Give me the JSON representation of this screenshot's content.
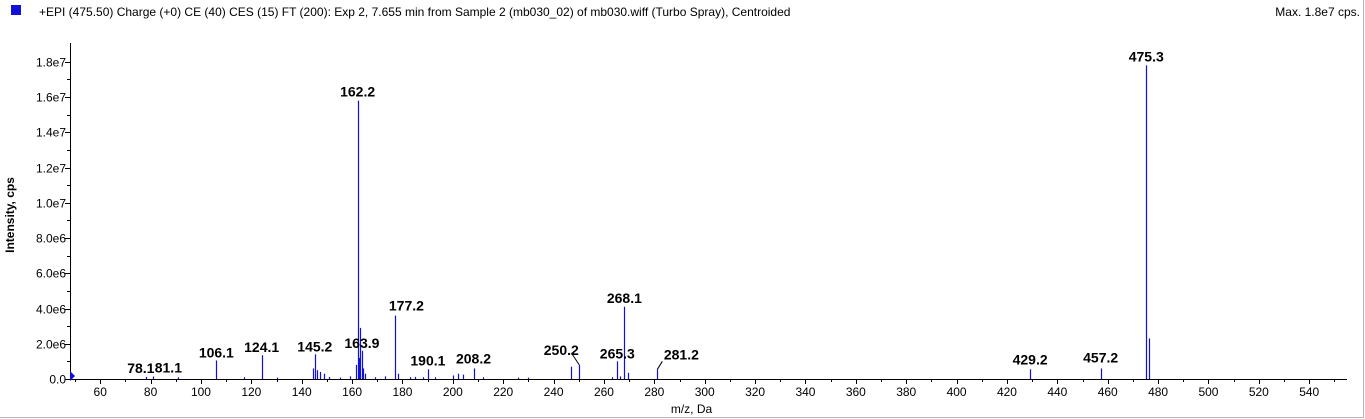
{
  "header": {
    "title": "+EPI (475.50) Charge (+0) CE (40) CES (15) FT (200): Exp 2, 7.655 min from Sample 2 (mb030_02) of mb030.wiff (Turbo Spray), Centroided",
    "max_label": "Max. 1.8e7 cps.",
    "series_color": "#1010d8"
  },
  "chart_data": {
    "type": "bar",
    "title": "",
    "xlabel": "m/z, Da",
    "ylabel": "Intensity, cps",
    "xlim": [
      48,
      555
    ],
    "ylim": [
      0,
      18500000
    ],
    "x_ticks": [
      60,
      80,
      100,
      120,
      140,
      160,
      180,
      200,
      220,
      240,
      260,
      280,
      300,
      320,
      340,
      360,
      380,
      400,
      420,
      440,
      460,
      480,
      500,
      520,
      540
    ],
    "x_tick_labels": [
      "60",
      "80",
      "100",
      "120",
      "140",
      "160",
      "180",
      "200",
      "220",
      "240",
      "260",
      "280",
      "300",
      "320",
      "340",
      "360",
      "380",
      "400",
      "420",
      "440",
      "460",
      "480",
      "500",
      "520",
      "540"
    ],
    "y_ticks": [
      0,
      2000000,
      4000000,
      6000000,
      8000000,
      10000000,
      12000000,
      14000000,
      16000000,
      18000000
    ],
    "y_tick_labels": [
      "0.0",
      "2.0e6",
      "4.0e6",
      "6.0e6",
      "8.0e6",
      "1.0e7",
      "1.2e7",
      "1.4e7",
      "1.6e7",
      "1.8e7"
    ],
    "grid": false,
    "color": "#1010d8",
    "peaks": [
      {
        "mz": 48.5,
        "intensity": 300000
      },
      {
        "mz": 78.1,
        "intensity": 120000
      },
      {
        "mz": 81.1,
        "intensity": 140000
      },
      {
        "mz": 91.0,
        "intensity": 100000
      },
      {
        "mz": 106.1,
        "intensity": 1050000
      },
      {
        "mz": 117.0,
        "intensity": 100000
      },
      {
        "mz": 124.1,
        "intensity": 1350000
      },
      {
        "mz": 130.0,
        "intensity": 80000
      },
      {
        "mz": 144.5,
        "intensity": 600000
      },
      {
        "mz": 145.2,
        "intensity": 1400000
      },
      {
        "mz": 146.2,
        "intensity": 500000
      },
      {
        "mz": 147.1,
        "intensity": 400000
      },
      {
        "mz": 149.0,
        "intensity": 300000
      },
      {
        "mz": 151.0,
        "intensity": 120000
      },
      {
        "mz": 155.0,
        "intensity": 80000
      },
      {
        "mz": 159.0,
        "intensity": 150000
      },
      {
        "mz": 161.5,
        "intensity": 800000
      },
      {
        "mz": 162.2,
        "intensity": 15800000
      },
      {
        "mz": 162.8,
        "intensity": 1200000
      },
      {
        "mz": 163.2,
        "intensity": 2900000
      },
      {
        "mz": 163.9,
        "intensity": 1600000
      },
      {
        "mz": 164.4,
        "intensity": 600000
      },
      {
        "mz": 165.0,
        "intensity": 300000
      },
      {
        "mz": 169.0,
        "intensity": 100000
      },
      {
        "mz": 173.0,
        "intensity": 150000
      },
      {
        "mz": 177.2,
        "intensity": 3600000
      },
      {
        "mz": 178.2,
        "intensity": 300000
      },
      {
        "mz": 183.0,
        "intensity": 100000
      },
      {
        "mz": 185.0,
        "intensity": 120000
      },
      {
        "mz": 188.0,
        "intensity": 100000
      },
      {
        "mz": 190.1,
        "intensity": 550000
      },
      {
        "mz": 193.0,
        "intensity": 100000
      },
      {
        "mz": 200.0,
        "intensity": 200000
      },
      {
        "mz": 202.0,
        "intensity": 300000
      },
      {
        "mz": 204.0,
        "intensity": 250000
      },
      {
        "mz": 208.2,
        "intensity": 600000
      },
      {
        "mz": 212.0,
        "intensity": 100000
      },
      {
        "mz": 226.0,
        "intensity": 80000
      },
      {
        "mz": 230.0,
        "intensity": 80000
      },
      {
        "mz": 247.0,
        "intensity": 700000
      },
      {
        "mz": 250.2,
        "intensity": 800000
      },
      {
        "mz": 263.0,
        "intensity": 100000
      },
      {
        "mz": 265.3,
        "intensity": 1000000
      },
      {
        "mz": 266.5,
        "intensity": 150000
      },
      {
        "mz": 268.1,
        "intensity": 4100000
      },
      {
        "mz": 269.5,
        "intensity": 350000
      },
      {
        "mz": 281.2,
        "intensity": 550000
      },
      {
        "mz": 429.2,
        "intensity": 550000
      },
      {
        "mz": 457.2,
        "intensity": 600000
      },
      {
        "mz": 475.3,
        "intensity": 17800000
      },
      {
        "mz": 476.3,
        "intensity": 2300000
      }
    ],
    "peak_labels": [
      {
        "text": "78.1",
        "mz": 78.1,
        "intensity": 120000,
        "dx": -5,
        "dy": -4
      },
      {
        "text": "81.1",
        "mz": 81.1,
        "intensity": 140000,
        "dx": 15,
        "dy": -4
      },
      {
        "text": "106.1",
        "mz": 106.1,
        "intensity": 1050000,
        "dx": 0,
        "dy": -3
      },
      {
        "text": "124.1",
        "mz": 124.1,
        "intensity": 1350000,
        "dx": 0,
        "dy": -3
      },
      {
        "text": "145.2",
        "mz": 145.2,
        "intensity": 1400000,
        "dx": 0,
        "dy": -3
      },
      {
        "text": "162.2",
        "mz": 162.2,
        "intensity": 15800000,
        "dx": 0,
        "dy": -4
      },
      {
        "text": "163.9",
        "mz": 163.9,
        "intensity": 1600000,
        "dx": 0,
        "dy": -3
      },
      {
        "text": "177.2",
        "mz": 177.2,
        "intensity": 3600000,
        "dx": 11,
        "dy": -5
      },
      {
        "text": "190.1",
        "mz": 190.1,
        "intensity": 550000,
        "dx": 0,
        "dy": -4
      },
      {
        "text": "208.2",
        "mz": 208.2,
        "intensity": 600000,
        "dx": 0,
        "dy": -5
      },
      {
        "text": "250.2",
        "mz": 250.2,
        "intensity": 800000,
        "dx": -18,
        "dy": -10
      },
      {
        "text": "265.3",
        "mz": 265.3,
        "intensity": 1000000,
        "dx": 0,
        "dy": -3
      },
      {
        "text": "268.1",
        "mz": 268.1,
        "intensity": 4100000,
        "dx": 0,
        "dy": -4
      },
      {
        "text": "281.2",
        "mz": 281.2,
        "intensity": 550000,
        "dx": 24,
        "dy": -10
      },
      {
        "text": "429.2",
        "mz": 429.2,
        "intensity": 550000,
        "dx": 0,
        "dy": -5
      },
      {
        "text": "457.2",
        "mz": 457.2,
        "intensity": 600000,
        "dx": 0,
        "dy": -6
      },
      {
        "text": "475.3",
        "mz": 475.3,
        "intensity": 17800000,
        "dx": 0,
        "dy": -4
      }
    ],
    "label_leaders": [
      {
        "mz": 250.2,
        "intensity": 800000,
        "to_dx": -8,
        "to_dy": -12
      },
      {
        "mz": 281.2,
        "intensity": 550000,
        "to_dx": 5,
        "to_dy": -8
      }
    ]
  }
}
